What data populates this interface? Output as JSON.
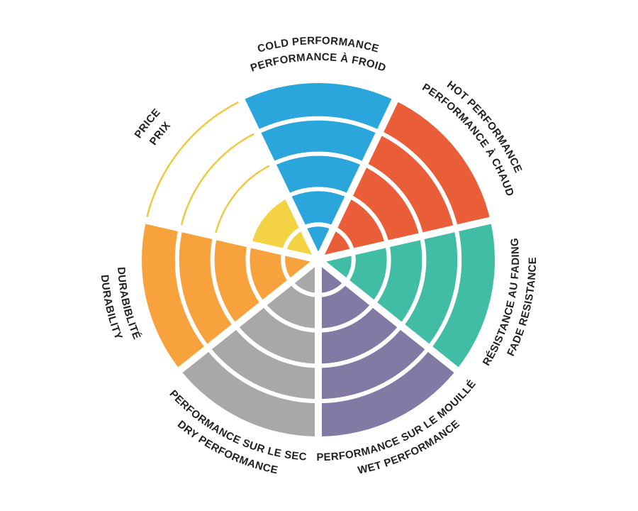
{
  "chart_data": {
    "type": "polar_wedge_rating",
    "rings": 5,
    "scale_max": 5,
    "background_color": "#FFFFFF",
    "separator_color": "#FFFFFF",
    "label_color": "#231F20",
    "legend_position": "around-rim",
    "grid": "concentric-rings-with-radial-gaps",
    "sectors": [
      {
        "id": "cold",
        "label_en": "COLD PERFORMANCE",
        "label_fr": "PERFORMANCE À FROID",
        "value": 5,
        "color": "#2BA6DC"
      },
      {
        "id": "hot",
        "label_en": "HOT PERFORMANCE",
        "label_fr": "PERFORMANCE À CHAUD",
        "value": 5,
        "color": "#E95D38"
      },
      {
        "id": "fade",
        "label_en": "FADE RESISTANCE",
        "label_fr": "RÉSISTANCE AU FADING",
        "value": 5,
        "color": "#41BDA6"
      },
      {
        "id": "wet",
        "label_en": "WET PERFORMANCE",
        "label_fr": "PERFORMANCE SUR LE MOUILLÉ",
        "value": 5,
        "color": "#8279A5"
      },
      {
        "id": "dry",
        "label_en": "DRY PERFORMANCE",
        "label_fr": "PERFORMANCE SUR LE SEC",
        "value": 5,
        "color": "#A8A8AB"
      },
      {
        "id": "durability",
        "label_en": "DURABILITY",
        "label_fr": "DURABIBLITÉ",
        "value": 5,
        "color": "#F7A23D"
      },
      {
        "id": "price",
        "label_en": "PRICE",
        "label_fr": "PRIX",
        "value": 2,
        "color": "#F3D344",
        "outline_color": "#EFC93F"
      }
    ]
  }
}
